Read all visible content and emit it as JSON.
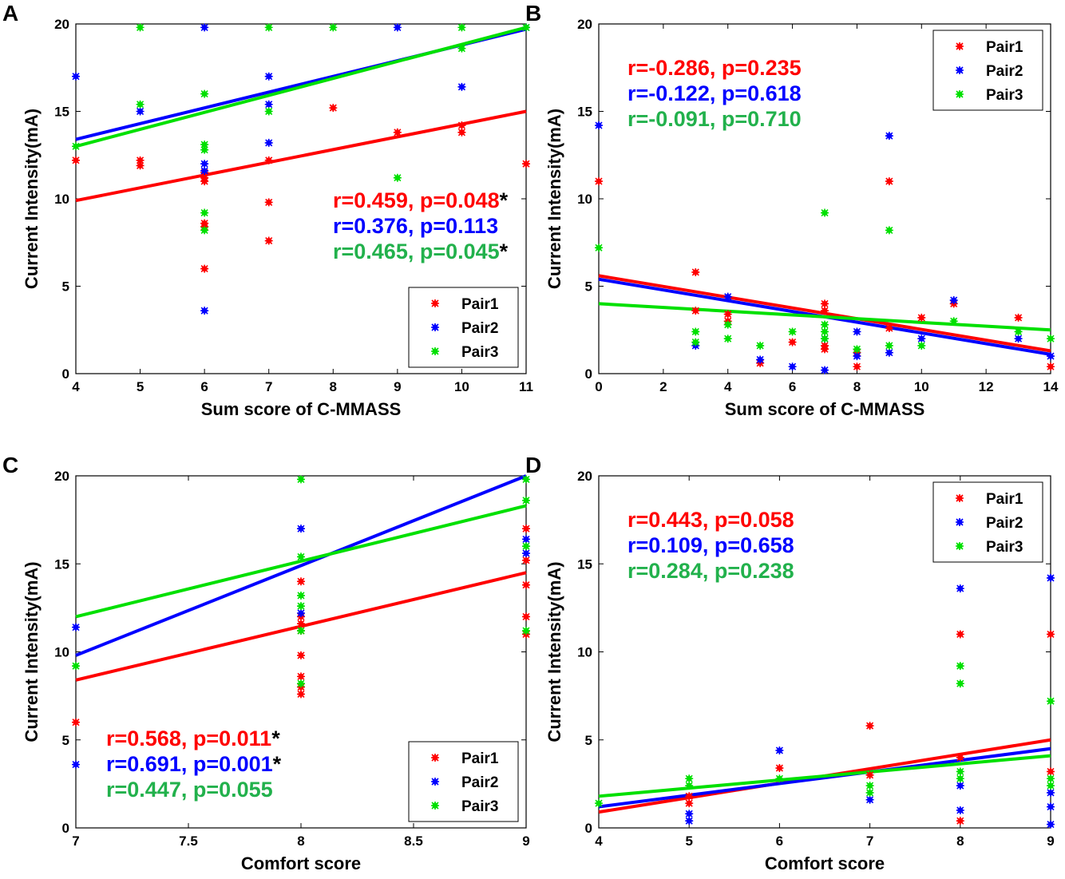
{
  "colors": {
    "Pair1": "#ff0000",
    "Pair2": "#0000ff",
    "Pair3": "#00e000",
    "pair3_text": "#22b14c",
    "asterisk": "#000000"
  },
  "chart_data": [
    {
      "panel": "A",
      "type": "scatter",
      "xlabel": "Sum score of C-MMASS",
      "ylabel": "Current Intensity(mA)",
      "xlim": [
        4,
        11
      ],
      "ylim": [
        0,
        20
      ],
      "xticks": [
        "4",
        "5",
        "6",
        "7",
        "8",
        "9",
        "10",
        "11"
      ],
      "yticks": [
        "0",
        "5",
        "10",
        "15",
        "20"
      ],
      "legend_position": "bottom-right",
      "stats_position": "middle-right",
      "stats": [
        {
          "text": "r=0.459, p=0.048",
          "sig": "*",
          "series": "Pair1"
        },
        {
          "text": "r=0.376, p=0.113",
          "sig": "",
          "series": "Pair2"
        },
        {
          "text": "r=0.465, p=0.045",
          "sig": "*",
          "series": "Pair3"
        }
      ],
      "series": [
        {
          "name": "Pair1",
          "fit": [
            [
              4,
              9.9
            ],
            [
              11,
              15.0
            ]
          ],
          "points": [
            [
              4,
              12.2
            ],
            [
              5,
              12.2
            ],
            [
              5,
              11.9
            ],
            [
              6,
              11.5
            ],
            [
              6,
              11.0
            ],
            [
              6,
              11.2
            ],
            [
              6,
              8.6
            ],
            [
              6,
              8.4
            ],
            [
              6,
              6.0
            ],
            [
              7,
              12.2
            ],
            [
              7,
              9.8
            ],
            [
              7,
              7.6
            ],
            [
              8,
              15.2
            ],
            [
              9,
              13.8
            ],
            [
              10,
              14.2
            ],
            [
              10,
              13.8
            ],
            [
              11,
              12.0
            ]
          ]
        },
        {
          "name": "Pair2",
          "fit": [
            [
              4,
              13.4
            ],
            [
              11,
              19.7
            ]
          ],
          "points": [
            [
              4,
              17.0
            ],
            [
              5,
              15.0
            ],
            [
              6,
              19.8
            ],
            [
              6,
              12.0
            ],
            [
              6,
              11.6
            ],
            [
              6,
              3.6
            ],
            [
              7,
              17.0
            ],
            [
              7,
              15.4
            ],
            [
              7,
              13.2
            ],
            [
              9,
              19.8
            ],
            [
              10,
              16.4
            ],
            [
              11,
              19.8
            ]
          ]
        },
        {
          "name": "Pair3",
          "fit": [
            [
              4,
              13.0
            ],
            [
              11,
              19.8
            ]
          ],
          "points": [
            [
              4,
              13.0
            ],
            [
              5,
              19.8
            ],
            [
              5,
              15.4
            ],
            [
              6,
              16.0
            ],
            [
              6,
              13.1
            ],
            [
              6,
              12.8
            ],
            [
              6,
              9.2
            ],
            [
              6,
              8.2
            ],
            [
              7,
              19.8
            ],
            [
              7,
              15.0
            ],
            [
              8,
              19.8
            ],
            [
              9,
              11.2
            ],
            [
              10,
              19.8
            ],
            [
              10,
              18.6
            ],
            [
              11,
              19.8
            ]
          ]
        }
      ]
    },
    {
      "panel": "B",
      "type": "scatter",
      "xlabel": "Sum score of C-MMASS",
      "ylabel": "Current Intensity(mA)",
      "xlim": [
        0,
        14
      ],
      "ylim": [
        0,
        20
      ],
      "xticks": [
        "0",
        "2",
        "4",
        "6",
        "8",
        "10",
        "12",
        "14"
      ],
      "yticks": [
        "0",
        "5",
        "10",
        "15",
        "20"
      ],
      "legend_position": "top-right",
      "stats_position": "top-left",
      "stats": [
        {
          "text": "r=-0.286, p=0.235",
          "sig": "",
          "series": "Pair1"
        },
        {
          "text": "r=-0.122, p=0.618",
          "sig": "",
          "series": "Pair2"
        },
        {
          "text": "r=-0.091, p=0.710",
          "sig": "",
          "series": "Pair3"
        }
      ],
      "series": [
        {
          "name": "Pair1",
          "fit": [
            [
              0,
              5.6
            ],
            [
              14,
              1.3
            ]
          ],
          "points": [
            [
              0,
              11.0
            ],
            [
              3,
              5.8
            ],
            [
              3,
              3.6
            ],
            [
              4,
              3.4
            ],
            [
              4,
              3.0
            ],
            [
              5,
              0.6
            ],
            [
              6,
              1.8
            ],
            [
              7,
              4.0
            ],
            [
              7,
              3.6
            ],
            [
              7,
              1.6
            ],
            [
              7,
              1.4
            ],
            [
              8,
              0.4
            ],
            [
              8,
              1.2
            ],
            [
              9,
              11.0
            ],
            [
              9,
              2.6
            ],
            [
              10,
              3.2
            ],
            [
              11,
              4.0
            ],
            [
              13,
              3.2
            ],
            [
              14,
              0.4
            ]
          ]
        },
        {
          "name": "Pair2",
          "fit": [
            [
              0,
              5.4
            ],
            [
              14,
              1.1
            ]
          ],
          "points": [
            [
              0,
              14.2
            ],
            [
              3,
              1.6
            ],
            [
              4,
              4.4
            ],
            [
              5,
              0.8
            ],
            [
              6,
              0.4
            ],
            [
              7,
              2.0
            ],
            [
              7,
              0.2
            ],
            [
              8,
              2.4
            ],
            [
              8,
              1.0
            ],
            [
              9,
              13.6
            ],
            [
              9,
              1.2
            ],
            [
              10,
              2.0
            ],
            [
              11,
              4.2
            ],
            [
              13,
              2.0
            ],
            [
              14,
              1.0
            ]
          ]
        },
        {
          "name": "Pair3",
          "fit": [
            [
              0,
              4.0
            ],
            [
              14,
              2.5
            ]
          ],
          "points": [
            [
              0,
              7.2
            ],
            [
              3,
              2.4
            ],
            [
              3,
              1.8
            ],
            [
              4,
              2.8
            ],
            [
              4,
              2.0
            ],
            [
              5,
              1.6
            ],
            [
              6,
              2.4
            ],
            [
              7,
              9.2
            ],
            [
              7,
              2.8
            ],
            [
              7,
              2.4
            ],
            [
              7,
              2.0
            ],
            [
              8,
              1.4
            ],
            [
              9,
              8.2
            ],
            [
              9,
              1.6
            ],
            [
              10,
              1.6
            ],
            [
              11,
              3.0
            ],
            [
              13,
              2.4
            ],
            [
              14,
              2.0
            ]
          ]
        }
      ]
    },
    {
      "panel": "C",
      "type": "scatter",
      "xlabel": "Comfort score",
      "ylabel": "Current Intensity(mA)",
      "xlim": [
        7,
        9
      ],
      "ylim": [
        0,
        20
      ],
      "xticks": [
        "7",
        "7.5",
        "8",
        "8.5",
        "9"
      ],
      "yticks": [
        "0",
        "5",
        "10",
        "15",
        "20"
      ],
      "legend_position": "bottom-right",
      "stats_position": "bottom-left",
      "stats": [
        {
          "text": "r=0.568, p=0.011",
          "sig": "*",
          "series": "Pair1"
        },
        {
          "text": "r=0.691, p=0.001",
          "sig": "*",
          "series": "Pair2"
        },
        {
          "text": "r=0.447, p=0.055",
          "sig": "",
          "series": "Pair3"
        }
      ],
      "series": [
        {
          "name": "Pair1",
          "fit": [
            [
              7,
              8.4
            ],
            [
              9,
              14.5
            ]
          ],
          "points": [
            [
              7,
              6.0
            ],
            [
              8,
              14.0
            ],
            [
              8,
              12.0
            ],
            [
              8,
              11.6
            ],
            [
              8,
              11.2
            ],
            [
              8,
              9.8
            ],
            [
              8,
              8.6
            ],
            [
              8,
              8.0
            ],
            [
              8,
              7.6
            ],
            [
              9,
              17.0
            ],
            [
              9,
              15.2
            ],
            [
              9,
              13.8
            ],
            [
              9,
              12.0
            ],
            [
              9,
              11.0
            ]
          ]
        },
        {
          "name": "Pair2",
          "fit": [
            [
              7,
              9.8
            ],
            [
              9,
              20.0
            ]
          ],
          "points": [
            [
              7,
              11.4
            ],
            [
              7,
              3.6
            ],
            [
              8,
              17.0
            ],
            [
              8,
              12.2
            ],
            [
              9,
              16.4
            ],
            [
              9,
              15.6
            ]
          ]
        },
        {
          "name": "Pair3",
          "fit": [
            [
              7,
              12.0
            ],
            [
              9,
              18.3
            ]
          ],
          "points": [
            [
              7,
              9.2
            ],
            [
              8,
              19.8
            ],
            [
              8,
              15.4
            ],
            [
              8,
              13.2
            ],
            [
              8,
              12.6
            ],
            [
              8,
              11.2
            ],
            [
              8,
              8.2
            ],
            [
              9,
              19.8
            ],
            [
              9,
              18.6
            ],
            [
              9,
              16.0
            ],
            [
              9,
              11.2
            ]
          ]
        }
      ]
    },
    {
      "panel": "D",
      "type": "scatter",
      "xlabel": "Comfort score",
      "ylabel": "Current Intensity(mA)",
      "xlim": [
        4,
        9
      ],
      "ylim": [
        0,
        20
      ],
      "xticks": [
        "4",
        "5",
        "6",
        "7",
        "8",
        "9"
      ],
      "yticks": [
        "0",
        "5",
        "10",
        "15",
        "20"
      ],
      "legend_position": "top-right",
      "stats_position": "top-left",
      "stats": [
        {
          "text": "r=0.443, p=0.058",
          "sig": "",
          "series": "Pair1"
        },
        {
          "text": "r=0.109, p=0.658",
          "sig": "",
          "series": "Pair2"
        },
        {
          "text": "r=0.284, p=0.238",
          "sig": "",
          "series": "Pair3"
        }
      ],
      "series": [
        {
          "name": "Pair1",
          "fit": [
            [
              4,
              0.9
            ],
            [
              9,
              5.0
            ]
          ],
          "points": [
            [
              5,
              1.8
            ],
            [
              5,
              1.4
            ],
            [
              6,
              3.4
            ],
            [
              7,
              5.8
            ],
            [
              7,
              3.0
            ],
            [
              8,
              11.0
            ],
            [
              8,
              4.0
            ],
            [
              8,
              0.4
            ],
            [
              9,
              11.0
            ],
            [
              9,
              3.2
            ]
          ]
        },
        {
          "name": "Pair2",
          "fit": [
            [
              4,
              1.2
            ],
            [
              9,
              4.5
            ]
          ],
          "points": [
            [
              5,
              0.8
            ],
            [
              5,
              0.4
            ],
            [
              6,
              4.4
            ],
            [
              7,
              1.6
            ],
            [
              8,
              13.6
            ],
            [
              8,
              2.4
            ],
            [
              8,
              1.0
            ],
            [
              9,
              14.2
            ],
            [
              9,
              2.0
            ],
            [
              9,
              1.2
            ],
            [
              9,
              0.2
            ]
          ]
        },
        {
          "name": "Pair3",
          "fit": [
            [
              4,
              1.8
            ],
            [
              9,
              4.1
            ]
          ],
          "points": [
            [
              4,
              1.4
            ],
            [
              5,
              2.8
            ],
            [
              5,
              2.4
            ],
            [
              6,
              2.8
            ],
            [
              7,
              2.4
            ],
            [
              7,
              2.0
            ],
            [
              8,
              9.2
            ],
            [
              8,
              8.2
            ],
            [
              8,
              3.2
            ],
            [
              8,
              2.8
            ],
            [
              9,
              7.2
            ],
            [
              9,
              2.8
            ],
            [
              9,
              2.4
            ]
          ]
        }
      ]
    }
  ]
}
